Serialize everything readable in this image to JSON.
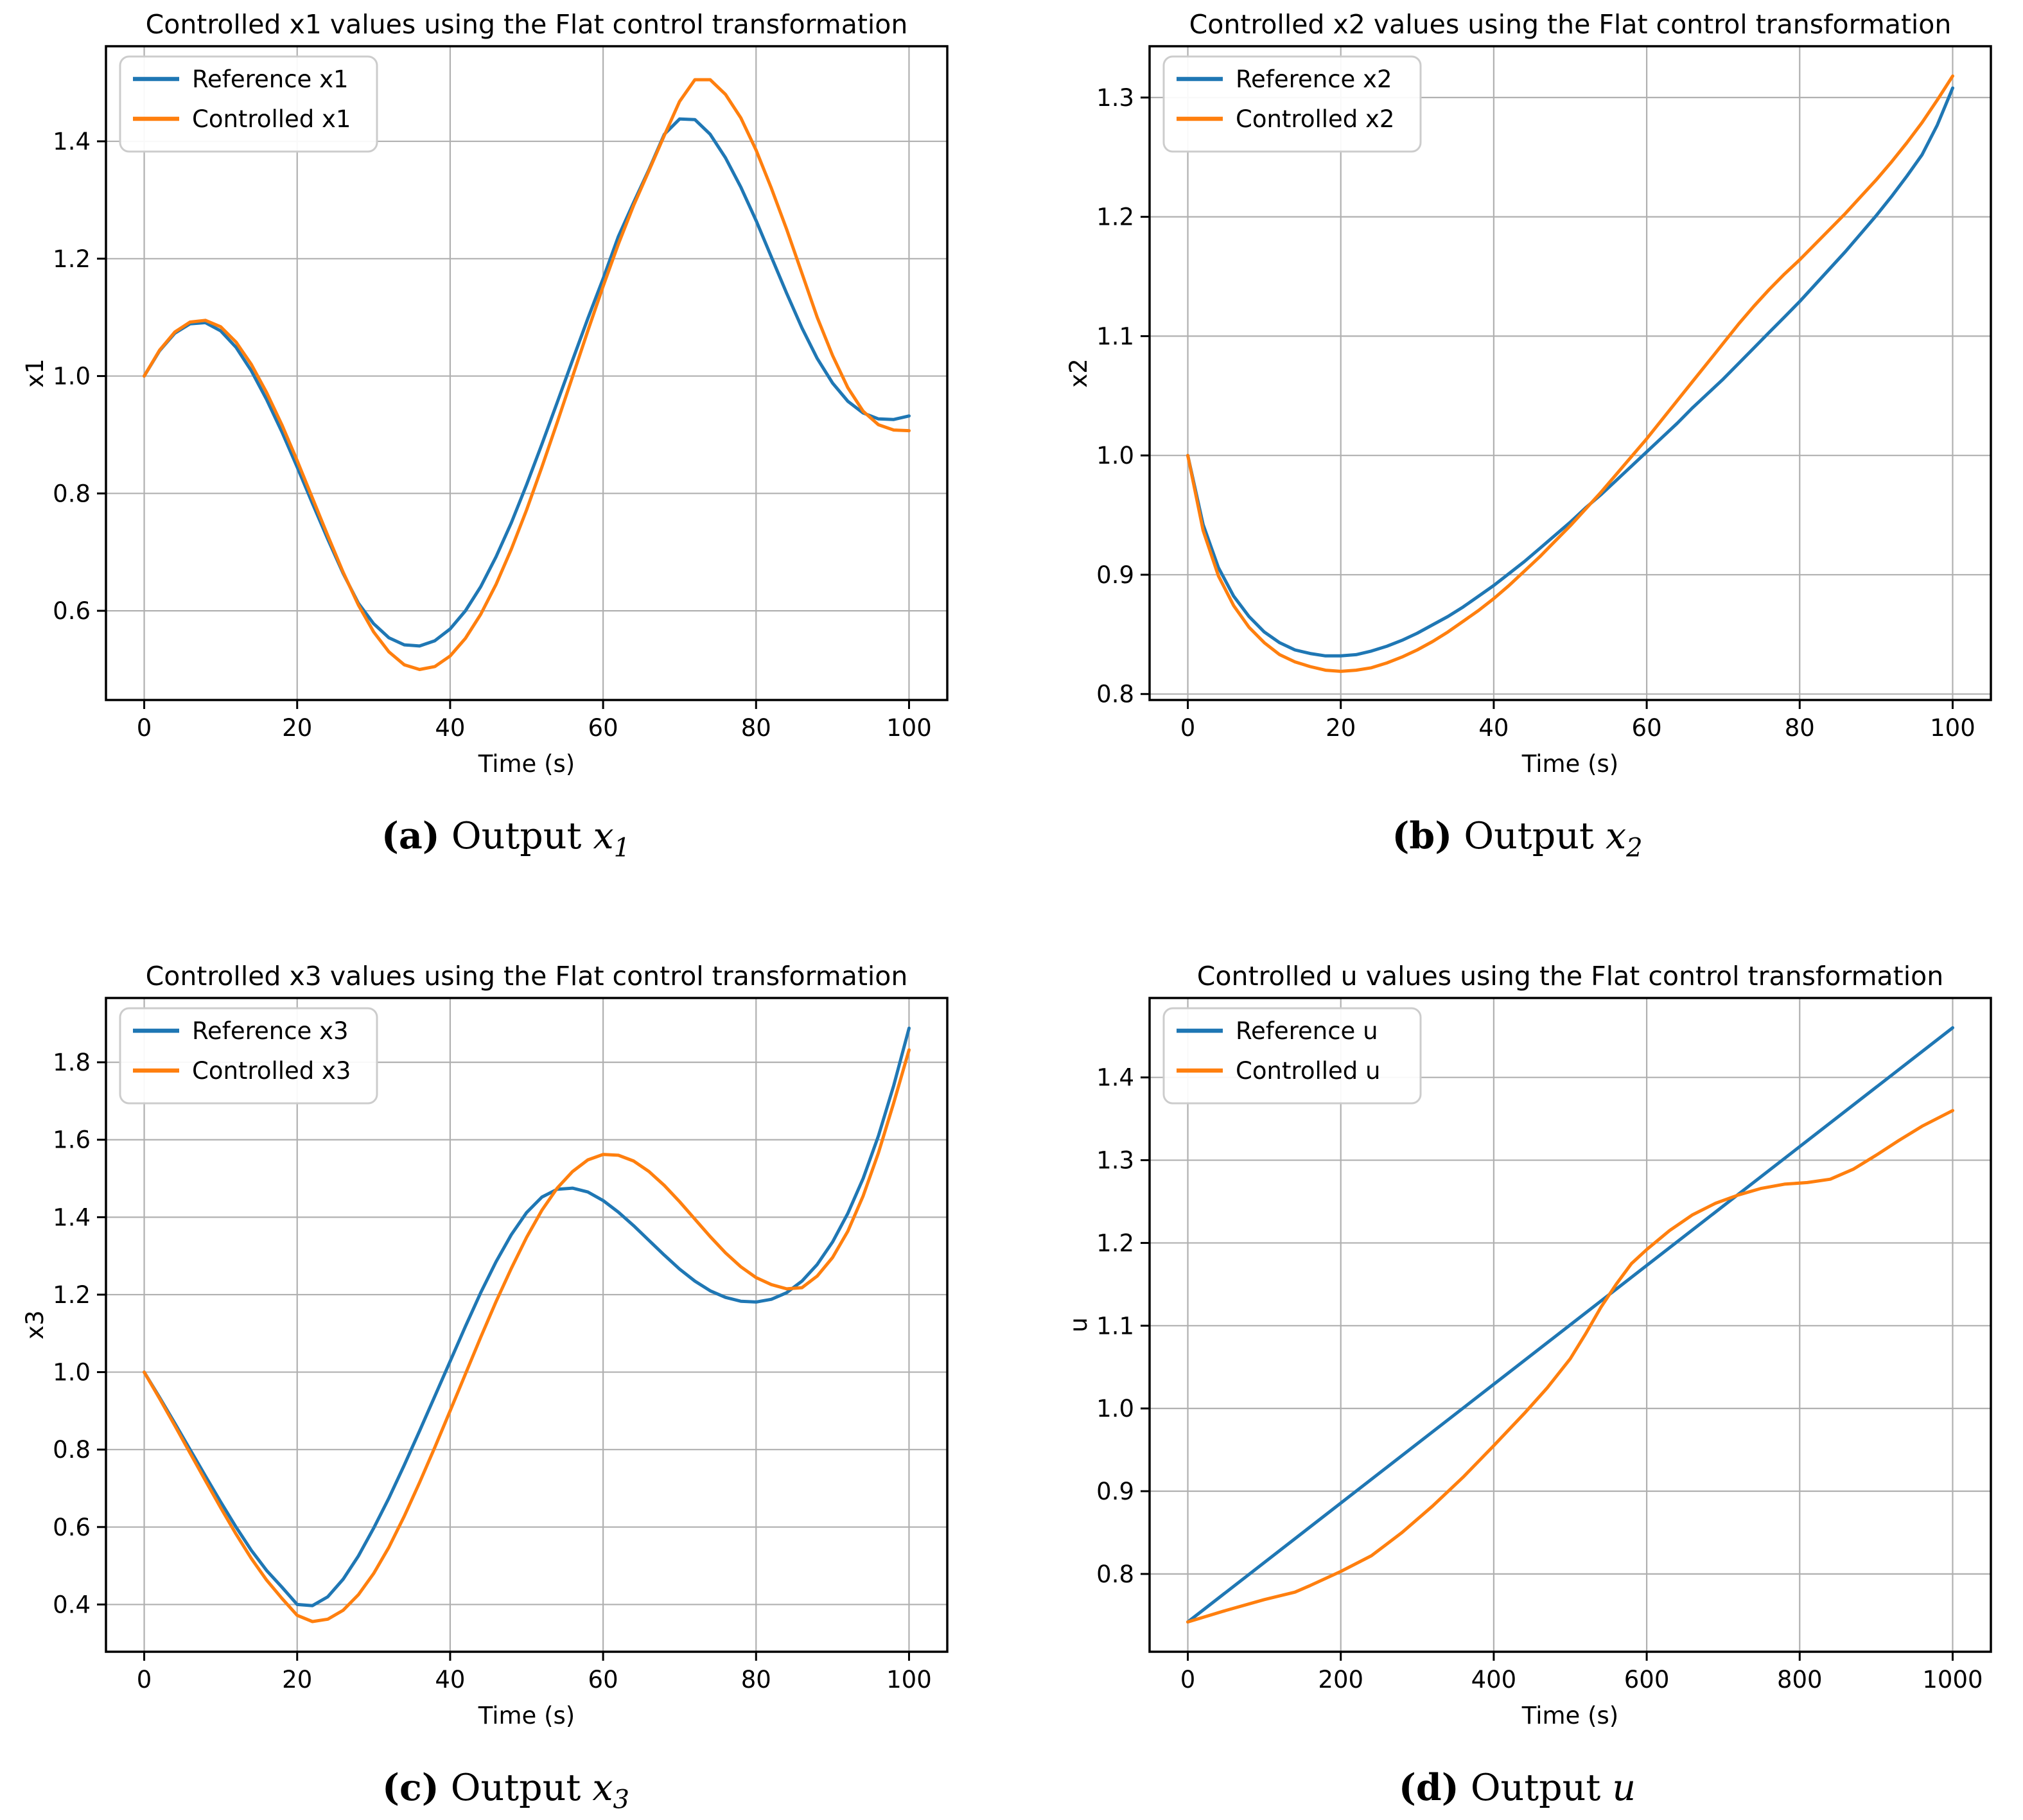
{
  "page": {
    "background": "#ffffff"
  },
  "colors": {
    "reference": "#1f77b4",
    "controlled": "#ff7f0e",
    "grid": "#b0b0b0",
    "axis": "#000000",
    "legend_border": "#cccccc",
    "legend_bg": "#ffffff"
  },
  "captions": [
    {
      "label": "(a)",
      "word": "Output",
      "variable": "x",
      "subscript": "1"
    },
    {
      "label": "(b)",
      "word": "Output",
      "variable": "x",
      "subscript": "2"
    },
    {
      "label": "(c)",
      "word": "Output",
      "variable": "x",
      "subscript": "3"
    },
    {
      "label": "(d)",
      "word": "Output",
      "variable": "u",
      "subscript": ""
    }
  ],
  "chart_data": [
    {
      "type": "line",
      "title": "Controlled x1 values using the Flat control transformation",
      "xlabel": "Time (s)",
      "ylabel": "x1",
      "xlim": [
        -5,
        105
      ],
      "ylim": [
        0.448,
        1.562
      ],
      "xticks": [
        0,
        20,
        40,
        60,
        80,
        100
      ],
      "yticks": [
        0.6,
        0.8,
        1.0,
        1.2,
        1.4
      ],
      "grid": true,
      "legend_position": "top-left",
      "series": [
        {
          "name": "Reference x1",
          "color": "#1f77b4",
          "x": [
            0,
            2,
            4,
            6,
            8,
            10,
            12,
            14,
            16,
            18,
            20,
            22,
            24,
            26,
            28,
            30,
            32,
            34,
            36,
            38,
            40,
            42,
            44,
            46,
            48,
            50,
            52,
            54,
            56,
            58,
            60,
            62,
            64,
            66,
            68,
            70,
            72,
            74,
            76,
            78,
            80,
            82,
            84,
            86,
            88,
            90,
            92,
            94,
            96,
            98,
            100
          ],
          "y": [
            1.0,
            1.043,
            1.073,
            1.089,
            1.091,
            1.077,
            1.049,
            1.009,
            0.96,
            0.905,
            0.845,
            0.783,
            0.722,
            0.664,
            0.613,
            0.578,
            0.554,
            0.542,
            0.54,
            0.549,
            0.569,
            0.6,
            0.641,
            0.692,
            0.75,
            0.815,
            0.884,
            0.955,
            1.027,
            1.098,
            1.166,
            1.238,
            1.296,
            1.352,
            1.412,
            1.438,
            1.437,
            1.412,
            1.372,
            1.322,
            1.265,
            1.203,
            1.141,
            1.082,
            1.03,
            0.988,
            0.957,
            0.937,
            0.927,
            0.926,
            0.932
          ]
        },
        {
          "name": "Controlled x1",
          "color": "#ff7f0e",
          "x": [
            0,
            2,
            4,
            6,
            8,
            10,
            12,
            14,
            16,
            18,
            20,
            22,
            24,
            26,
            28,
            30,
            32,
            34,
            36,
            38,
            40,
            42,
            44,
            46,
            48,
            50,
            52,
            54,
            56,
            58,
            60,
            62,
            64,
            66,
            68,
            70,
            72,
            74,
            76,
            78,
            80,
            82,
            84,
            86,
            88,
            90,
            92,
            94,
            96,
            98,
            100
          ],
          "y": [
            1.0,
            1.044,
            1.075,
            1.092,
            1.095,
            1.084,
            1.058,
            1.02,
            0.972,
            0.917,
            0.856,
            0.792,
            0.728,
            0.666,
            0.61,
            0.564,
            0.53,
            0.508,
            0.5,
            0.505,
            0.523,
            0.553,
            0.594,
            0.645,
            0.705,
            0.772,
            0.845,
            0.921,
            0.999,
            1.077,
            1.153,
            1.225,
            1.291,
            1.35,
            1.41,
            1.468,
            1.505,
            1.505,
            1.48,
            1.44,
            1.385,
            1.32,
            1.25,
            1.175,
            1.1,
            1.035,
            0.98,
            0.94,
            0.917,
            0.908,
            0.907
          ]
        }
      ]
    },
    {
      "type": "line",
      "title": "Controlled x2 values using the Flat control transformation",
      "xlabel": "Time (s)",
      "ylabel": "x2",
      "xlim": [
        -5,
        105
      ],
      "ylim": [
        0.795,
        1.343
      ],
      "xticks": [
        0,
        20,
        40,
        60,
        80,
        100
      ],
      "yticks": [
        0.8,
        0.9,
        1.0,
        1.1,
        1.2,
        1.3
      ],
      "grid": true,
      "legend_position": "top-left",
      "series": [
        {
          "name": "Reference x2",
          "color": "#1f77b4",
          "x": [
            0,
            2,
            4,
            6,
            8,
            10,
            12,
            14,
            16,
            18,
            20,
            22,
            24,
            26,
            28,
            30,
            32,
            34,
            36,
            38,
            40,
            42,
            44,
            46,
            48,
            50,
            52,
            54,
            56,
            58,
            60,
            62,
            64,
            66,
            68,
            70,
            72,
            74,
            76,
            78,
            80,
            82,
            84,
            86,
            88,
            90,
            92,
            94,
            96,
            98,
            100
          ],
          "y": [
            1.0,
            0.942,
            0.906,
            0.882,
            0.865,
            0.852,
            0.843,
            0.837,
            0.834,
            0.832,
            0.832,
            0.833,
            0.836,
            0.84,
            0.845,
            0.851,
            0.858,
            0.865,
            0.873,
            0.882,
            0.891,
            0.901,
            0.911,
            0.922,
            0.933,
            0.944,
            0.956,
            0.967,
            0.979,
            0.991,
            1.003,
            1.015,
            1.027,
            1.04,
            1.052,
            1.064,
            1.077,
            1.09,
            1.103,
            1.116,
            1.129,
            1.143,
            1.157,
            1.171,
            1.186,
            1.201,
            1.217,
            1.234,
            1.252,
            1.277,
            1.308
          ]
        },
        {
          "name": "Controlled x2",
          "color": "#ff7f0e",
          "x": [
            0,
            2,
            4,
            6,
            8,
            10,
            12,
            14,
            16,
            18,
            20,
            22,
            24,
            26,
            28,
            30,
            32,
            34,
            36,
            38,
            40,
            42,
            44,
            46,
            48,
            50,
            52,
            54,
            56,
            58,
            60,
            62,
            64,
            66,
            68,
            70,
            72,
            74,
            76,
            78,
            80,
            82,
            84,
            86,
            88,
            90,
            92,
            94,
            96,
            98,
            100
          ],
          "y": [
            1.0,
            0.937,
            0.899,
            0.874,
            0.856,
            0.843,
            0.833,
            0.827,
            0.823,
            0.82,
            0.819,
            0.82,
            0.822,
            0.826,
            0.831,
            0.837,
            0.844,
            0.852,
            0.861,
            0.87,
            0.88,
            0.891,
            0.903,
            0.915,
            0.928,
            0.941,
            0.955,
            0.969,
            0.984,
            0.999,
            1.014,
            1.03,
            1.046,
            1.062,
            1.078,
            1.094,
            1.11,
            1.125,
            1.139,
            1.152,
            1.164,
            1.177,
            1.19,
            1.203,
            1.217,
            1.231,
            1.246,
            1.262,
            1.279,
            1.298,
            1.318
          ]
        }
      ]
    },
    {
      "type": "line",
      "title": "Controlled x3 values using the Flat control transformation",
      "xlabel": "Time (s)",
      "ylabel": "x3",
      "xlim": [
        -5,
        105
      ],
      "ylim": [
        0.278,
        1.966
      ],
      "xticks": [
        0,
        20,
        40,
        60,
        80,
        100
      ],
      "yticks": [
        0.4,
        0.6,
        0.8,
        1.0,
        1.2,
        1.4,
        1.6,
        1.8
      ],
      "grid": true,
      "legend_position": "top-left",
      "series": [
        {
          "name": "Reference x3",
          "color": "#1f77b4",
          "x": [
            0,
            2,
            4,
            6,
            8,
            10,
            12,
            14,
            16,
            18,
            20,
            22,
            24,
            26,
            28,
            30,
            32,
            34,
            36,
            38,
            40,
            42,
            44,
            46,
            48,
            50,
            52,
            54,
            56,
            58,
            60,
            62,
            64,
            66,
            68,
            70,
            72,
            74,
            76,
            78,
            80,
            82,
            84,
            86,
            88,
            90,
            92,
            94,
            96,
            98,
            100
          ],
          "y": [
            1.0,
            0.935,
            0.868,
            0.8,
            0.732,
            0.665,
            0.6,
            0.54,
            0.488,
            0.445,
            0.4,
            0.397,
            0.42,
            0.465,
            0.525,
            0.597,
            0.675,
            0.76,
            0.848,
            0.938,
            1.028,
            1.118,
            1.205,
            1.285,
            1.355,
            1.412,
            1.452,
            1.472,
            1.475,
            1.465,
            1.443,
            1.413,
            1.378,
            1.34,
            1.302,
            1.266,
            1.235,
            1.21,
            1.193,
            1.183,
            1.181,
            1.188,
            1.205,
            1.235,
            1.278,
            1.336,
            1.41,
            1.5,
            1.61,
            1.74,
            1.888
          ]
        },
        {
          "name": "Controlled x3",
          "color": "#ff7f0e",
          "x": [
            0,
            2,
            4,
            6,
            8,
            10,
            12,
            14,
            16,
            18,
            20,
            22,
            24,
            26,
            28,
            30,
            32,
            34,
            36,
            38,
            40,
            42,
            44,
            46,
            48,
            50,
            52,
            54,
            56,
            58,
            60,
            62,
            64,
            66,
            68,
            70,
            72,
            74,
            76,
            78,
            80,
            82,
            84,
            86,
            88,
            90,
            92,
            94,
            96,
            98,
            100
          ],
          "y": [
            1.0,
            0.932,
            0.862,
            0.791,
            0.72,
            0.65,
            0.582,
            0.519,
            0.463,
            0.416,
            0.372,
            0.356,
            0.362,
            0.385,
            0.425,
            0.48,
            0.548,
            0.628,
            0.715,
            0.806,
            0.9,
            0.995,
            1.09,
            1.182,
            1.268,
            1.348,
            1.418,
            1.475,
            1.518,
            1.548,
            1.562,
            1.56,
            1.545,
            1.518,
            1.482,
            1.44,
            1.395,
            1.35,
            1.308,
            1.272,
            1.244,
            1.226,
            1.215,
            1.218,
            1.248,
            1.296,
            1.364,
            1.455,
            1.566,
            1.695,
            1.832
          ]
        }
      ]
    },
    {
      "type": "line",
      "title": "Controlled u values using the Flat control transformation",
      "xlabel": "Time (s)",
      "ylabel": "u",
      "xlim": [
        -50,
        1050
      ],
      "ylim": [
        0.706,
        1.496
      ],
      "xticks": [
        0,
        200,
        400,
        600,
        800,
        1000
      ],
      "yticks": [
        0.8,
        0.9,
        1.0,
        1.1,
        1.2,
        1.3,
        1.4
      ],
      "grid": true,
      "legend_position": "top-left",
      "series": [
        {
          "name": "Reference u",
          "color": "#1f77b4",
          "x": [
            0,
            500,
            1000
          ],
          "y": [
            0.742,
            1.101,
            1.46
          ]
        },
        {
          "name": "Controlled u",
          "color": "#ff7f0e",
          "x": [
            0,
            50,
            100,
            140,
            160,
            200,
            240,
            280,
            320,
            360,
            400,
            440,
            470,
            500,
            520,
            540,
            560,
            580,
            600,
            630,
            660,
            690,
            720,
            750,
            780,
            810,
            840,
            870,
            900,
            930,
            960,
            1000
          ],
          "y": [
            0.742,
            0.756,
            0.769,
            0.778,
            0.786,
            0.803,
            0.822,
            0.85,
            0.882,
            0.917,
            0.955,
            0.994,
            1.025,
            1.06,
            1.09,
            1.122,
            1.15,
            1.175,
            1.192,
            1.215,
            1.234,
            1.248,
            1.258,
            1.266,
            1.271,
            1.273,
            1.277,
            1.289,
            1.306,
            1.324,
            1.341,
            1.36
          ]
        }
      ]
    }
  ]
}
